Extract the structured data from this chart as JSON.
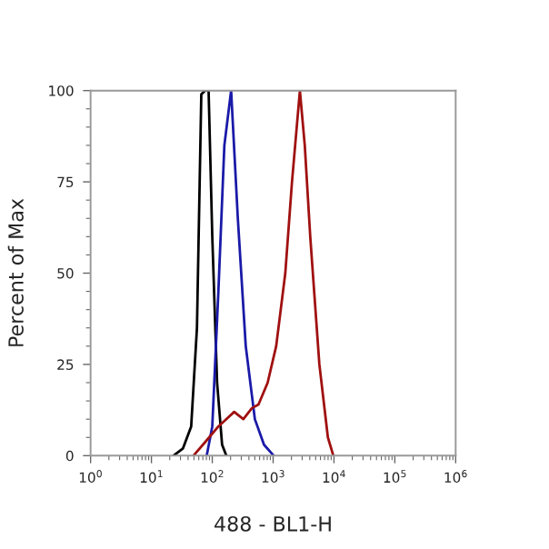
{
  "chart_data": {
    "type": "line",
    "xlabel": "488 - BL1-H",
    "ylabel": "Percent of Max",
    "log": "x",
    "grid": false,
    "legend": false,
    "marker": "none",
    "line_style": "solid",
    "xlim": [
      1,
      1000000
    ],
    "xticks": [
      {
        "value": 1,
        "label": "10$^{0}$"
      },
      {
        "value": 10,
        "label": "10$^{1}$"
      },
      {
        "value": 100,
        "label": "10$^{2}$"
      },
      {
        "value": 1000,
        "label": "10$^{3}$"
      },
      {
        "value": 10000,
        "label": "10$^{4}$"
      },
      {
        "value": 100000,
        "label": "10$^{5}$"
      },
      {
        "value": 1000000,
        "label": "10$^{6}$"
      }
    ],
    "ylim": [
      0,
      100
    ],
    "yticks": [
      0,
      25,
      50,
      75,
      100
    ],
    "series": [
      {
        "color": "#000000",
        "x": [
          23,
          33,
          45,
          56,
          66,
          76,
          87,
          100,
          120,
          145,
          170
        ],
        "values": [
          0,
          2,
          8,
          35,
          99,
          100,
          100,
          60,
          20,
          3,
          0
        ]
      },
      {
        "color": "#1a1aa8",
        "x": [
          81,
          100,
          126,
          158,
          204,
          263,
          355,
          501,
          708,
          1023
        ],
        "values": [
          0,
          8,
          45,
          85,
          100,
          65,
          30,
          10,
          3,
          0
        ]
      },
      {
        "color": "#a01010",
        "x": [
          49,
          79,
          126,
          229,
          324,
          447,
          575,
          813,
          1122,
          1585,
          2042,
          2754,
          3311,
          4074,
          5754,
          7943,
          9772
        ],
        "values": [
          0,
          4,
          8,
          12,
          10,
          13,
          14,
          20,
          30,
          50,
          75,
          100,
          85,
          60,
          25,
          5,
          0
        ]
      }
    ]
  }
}
